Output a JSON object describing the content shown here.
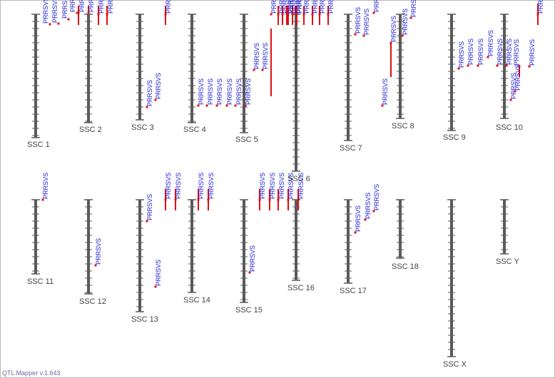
{
  "app": {
    "footer": "QTL Mapper v.1.643"
  },
  "colors": {
    "chromosome": "#5a5a5a",
    "tick": "#5a5a5a",
    "qtl_bar": "#e01010",
    "qtl_label": "#1a1ad6",
    "chr_label": "#444444"
  },
  "chromosomes": [
    {
      "id": "chr-ssc1",
      "label": "SSC 1",
      "qtls": [
        {
          "label": "PRRSVS"
        },
        {
          "label": "PRRSVS"
        },
        {
          "label": "PRRS"
        },
        {
          "label": "PRRSVS"
        },
        {
          "label": "PRRSVS"
        },
        {
          "label": "PRRSVS"
        }
      ]
    },
    {
      "id": "chr-ssc2",
      "label": "SSC 2",
      "qtls": [
        {
          "label": "PRRSVS"
        },
        {
          "label": "PRRSVS"
        }
      ]
    },
    {
      "id": "chr-ssc3",
      "label": "SSC 3",
      "qtls": [
        {
          "label": "PRRSVS"
        },
        {
          "label": "PRRSVS"
        },
        {
          "label": "PRRSVS"
        }
      ]
    },
    {
      "id": "chr-ssc4",
      "label": "SSC 4",
      "qtls": [
        {
          "label": "PRRSVS"
        },
        {
          "label": "PRRSVS"
        },
        {
          "label": "PRRSVS"
        },
        {
          "label": "PRRSVS"
        },
        {
          "label": "PRRSVS"
        }
      ]
    },
    {
      "id": "chr-ssc5",
      "label": "SSC 5",
      "qtls": [
        {
          "label": "PRRSVS"
        },
        {
          "label": "PRRSVS"
        },
        {
          "label": "PRRSVS"
        },
        {
          "label": "PRRSVS"
        },
        {
          "label": "PRRSVS"
        },
        {
          "label": "PRRSVS"
        },
        {
          "label": "PRRSVS"
        }
      ]
    },
    {
      "id": "chr-ssc6",
      "label": "SSC 6",
      "qtls": [
        {
          "label": "PRRSVS"
        },
        {
          "label": "PRRSVS"
        },
        {
          "label": "PRRSVS"
        },
        {
          "label": "PRRSVS"
        },
        {
          "label": "PRRSVS"
        },
        {
          "label": "PRRSVS"
        },
        {
          "label": "PRRSVS"
        },
        {
          "label": "PRRSVS"
        }
      ]
    },
    {
      "id": "chr-ssc7",
      "label": "SSC 7",
      "qtls": [
        {
          "label": "PRRSVS"
        },
        {
          "label": "PRRSVS"
        },
        {
          "label": "PRRSVS"
        }
      ]
    },
    {
      "id": "chr-ssc8",
      "label": "SSC 8",
      "qtls": [
        {
          "label": "PRRSVS"
        },
        {
          "label": "PRRSVS"
        },
        {
          "label": "PRRSVS"
        },
        {
          "label": "PRRSVS"
        }
      ]
    },
    {
      "id": "chr-ssc9",
      "label": "SSC 9",
      "qtls": [
        {
          "label": "PRRSVS"
        },
        {
          "label": "PRRSVS"
        },
        {
          "label": "PRRSVS"
        },
        {
          "label": "PRRSVS"
        }
      ]
    },
    {
      "id": "chr-ssc10",
      "label": "SSC 10",
      "qtls": [
        {
          "label": "PRRSVS"
        },
        {
          "label": "PRRSVS"
        },
        {
          "label": "PRRSVS"
        },
        {
          "label": "PRRSVS"
        },
        {
          "label": "PRRSVS"
        },
        {
          "label": "PRRSVS"
        },
        {
          "label": "PRRSVS"
        }
      ]
    },
    {
      "id": "chr-ssc11",
      "label": "SSC 11",
      "qtls": [
        {
          "label": "PRRSVS"
        }
      ]
    },
    {
      "id": "chr-ssc12",
      "label": "SSC 12",
      "qtls": [
        {
          "label": "PRRSVS"
        }
      ]
    },
    {
      "id": "chr-ssc13",
      "label": "SSC 13",
      "qtls": [
        {
          "label": "PRRSVS"
        },
        {
          "label": "PRRSVS"
        },
        {
          "label": "PRRSVS"
        },
        {
          "label": "PRRSVS"
        }
      ]
    },
    {
      "id": "chr-ssc14",
      "label": "SSC 14",
      "qtls": [
        {
          "label": "PRRSVS"
        },
        {
          "label": "PRRSVS"
        }
      ]
    },
    {
      "id": "chr-ssc15",
      "label": "SSC 15",
      "qtls": [
        {
          "label": "PRRSVS"
        }
      ]
    },
    {
      "id": "chr-ssc16",
      "label": "SSC 16",
      "qtls": [
        {
          "label": "PRRSVS"
        },
        {
          "label": "PRRSVS"
        },
        {
          "label": "PRRSVS"
        },
        {
          "label": "PRRSVS"
        },
        {
          "label": "PRRSVS"
        }
      ]
    },
    {
      "id": "chr-ssc17",
      "label": "SSC 17",
      "qtls": [
        {
          "label": "PRRSVS"
        },
        {
          "label": "PRRSVS"
        },
        {
          "label": "PRRSVS"
        }
      ]
    },
    {
      "id": "chr-ssc18",
      "label": "SSC 18",
      "qtls": []
    },
    {
      "id": "chr-sscx",
      "label": "SSC X",
      "qtls": []
    },
    {
      "id": "chr-sscy",
      "label": "SSC Y",
      "qtls": []
    }
  ]
}
